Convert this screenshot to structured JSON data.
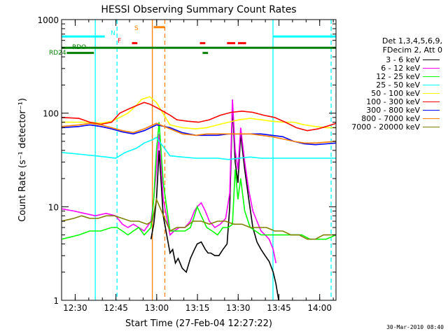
{
  "chart_data": {
    "type": "line",
    "title": "HESSI Observing Summary Count Rates",
    "xlabel": "Start Time (27-Feb-04 12:27:22)",
    "ylabel": "Count Rate (s⁻¹ detector⁻¹)",
    "yscale": "log",
    "xlim": [
      -2.4,
      98.6
    ],
    "ylim": [
      1,
      1000
    ],
    "xticks": [
      {
        "v": 2.6,
        "label": "12:30"
      },
      {
        "v": 17.6,
        "label": "12:45"
      },
      {
        "v": 32.6,
        "label": "13:00"
      },
      {
        "v": 47.6,
        "label": "13:15"
      },
      {
        "v": 62.6,
        "label": "13:30"
      },
      {
        "v": 77.6,
        "label": "13:45"
      },
      {
        "v": 92.6,
        "label": "14:00"
      }
    ],
    "yticks": [
      {
        "v": 1,
        "label": "1"
      },
      {
        "v": 10,
        "label": "10"
      },
      {
        "v": 100,
        "label": "100"
      },
      {
        "v": 1000,
        "label": "1000"
      }
    ],
    "legend_header": [
      "Det 1,3,4,5,6,9,",
      "FDecim 2, Att 0"
    ],
    "legend_position": "right",
    "series": [
      {
        "name": "3 - 6 keV",
        "color": "#000000",
        "x": [
          30.5,
          31.5,
          32.5,
          33.5,
          35,
          37.5,
          38.5,
          39.5,
          40.5,
          42,
          43.5,
          45,
          46.5,
          47.5,
          49,
          50.5,
          51.5,
          52.5,
          54,
          55.5,
          57,
          58.5,
          59.5,
          60.5,
          61.5,
          62.5,
          63.5,
          65,
          66.5,
          68,
          69.5,
          71,
          72.5,
          74,
          75.5,
          76.5,
          77.5
        ],
        "y": [
          4.5,
          6.5,
          12,
          40,
          8,
          3.2,
          3.5,
          2.5,
          2.8,
          2.2,
          2,
          2.8,
          3.5,
          4,
          4.2,
          3.5,
          3.2,
          3.2,
          3,
          3,
          3.5,
          4,
          10,
          120,
          30,
          18,
          60,
          25,
          12,
          6,
          4.2,
          3.5,
          3,
          2.6,
          2,
          1.5,
          1
        ]
      },
      {
        "name": "6 - 12 keV",
        "color": "#ff00ff",
        "x": [
          -2.4,
          2,
          6,
          10,
          14,
          17.5,
          20,
          22,
          24,
          26,
          28,
          30.5,
          31.5,
          32.5,
          33.5,
          35,
          37.5,
          39,
          41,
          43,
          45,
          46.5,
          47.5,
          49,
          50.5,
          52,
          54,
          56,
          58,
          59.5,
          60.5,
          61.5,
          62.5,
          63.5,
          65,
          66.5,
          68,
          69.5,
          71,
          72.5,
          74,
          75.5,
          76.5
        ],
        "y": [
          9.5,
          9,
          8.5,
          8,
          8.5,
          8,
          6.5,
          6,
          6.5,
          6,
          5.5,
          7,
          12,
          25,
          60,
          12,
          5,
          5.5,
          6,
          6,
          7,
          9,
          10,
          11,
          9,
          7,
          6,
          6.5,
          7.5,
          14,
          140,
          40,
          25,
          70,
          30,
          15,
          9,
          7,
          5.5,
          5,
          4.5,
          3.5,
          2.5
        ]
      },
      {
        "name": "12 - 25 keV",
        "color": "#00ff00",
        "x": [
          -2.4,
          4,
          8,
          12,
          16,
          18,
          20,
          22,
          24,
          26,
          28,
          30.5,
          31.5,
          32.5,
          33.5,
          35,
          37.5,
          40,
          43,
          45,
          46.5,
          47.5,
          49,
          51,
          53,
          55,
          57,
          59,
          60.5,
          61.5,
          62.5,
          63.5,
          65,
          67,
          69,
          71,
          73,
          75,
          77.5,
          80,
          83,
          86,
          89,
          92,
          95,
          98.6
        ],
        "y": [
          4.5,
          5,
          5.5,
          5.5,
          6,
          6,
          5.5,
          5,
          5.5,
          6,
          5,
          6,
          12,
          40,
          80,
          18,
          5.5,
          5.5,
          5.5,
          6,
          8,
          10,
          8,
          6,
          5.5,
          5,
          6,
          6,
          6.5,
          25,
          12,
          20,
          9,
          6,
          5.5,
          5,
          5,
          5,
          5,
          5,
          5,
          5,
          4.5,
          4.5,
          4.5,
          5
        ]
      },
      {
        "name": "25 - 50 keV",
        "color": "#00ffff",
        "x": [
          -2.4,
          2,
          6,
          10,
          14,
          17.5,
          21,
          25,
          28,
          31,
          32.5,
          37.5,
          42,
          47,
          51,
          55,
          59,
          63,
          67,
          71,
          75,
          79,
          83,
          87,
          91,
          95,
          98.6
        ],
        "y": [
          38,
          37,
          36,
          35,
          34,
          33,
          38,
          42,
          48,
          52,
          55,
          35,
          34,
          33,
          33,
          33,
          32,
          33,
          34,
          33,
          33,
          33,
          33,
          33,
          33,
          33,
          33
        ]
      },
      {
        "name": "50 - 100 keV",
        "color": "#ffff00",
        "x": [
          -2.4,
          4,
          8,
          12,
          16,
          19,
          22,
          25,
          27,
          30,
          32.5,
          37.5,
          42,
          47,
          51,
          55,
          59,
          63,
          67,
          71,
          75,
          79,
          83,
          87,
          91,
          95,
          98.6
        ],
        "y": [
          80,
          80,
          80,
          78,
          82,
          90,
          100,
          120,
          140,
          150,
          130,
          75,
          70,
          68,
          70,
          75,
          80,
          85,
          88,
          85,
          82,
          80,
          80,
          75,
          72,
          70,
          70
        ]
      },
      {
        "name": "100 - 300 keV",
        "color": "#ff0000",
        "x": [
          -2.4,
          4,
          8,
          12,
          16,
          19,
          22,
          25,
          28,
          30,
          32.5,
          37.5,
          40,
          44,
          48,
          52,
          56,
          60,
          64,
          68,
          72,
          76,
          80,
          84,
          88,
          92,
          95,
          98.6
        ],
        "y": [
          90,
          88,
          80,
          76,
          80,
          100,
          110,
          120,
          130,
          125,
          115,
          95,
          85,
          82,
          80,
          85,
          95,
          102,
          105,
          102,
          95,
          90,
          80,
          70,
          65,
          68,
          72,
          78
        ]
      },
      {
        "name": "300 - 800 keV",
        "color": "#0000ff",
        "x": [
          -2.4,
          4,
          8,
          12,
          16,
          20,
          24,
          28,
          32.5,
          37.5,
          42,
          47,
          51,
          55,
          59,
          63,
          67,
          71,
          75,
          79,
          83,
          87,
          91,
          95,
          98.6
        ],
        "y": [
          70,
          72,
          75,
          72,
          68,
          63,
          60,
          65,
          75,
          70,
          62,
          58,
          58,
          58,
          60,
          60,
          60,
          60,
          58,
          56,
          50,
          47,
          46,
          47,
          48
        ]
      },
      {
        "name": "800 - 7000 keV",
        "color": "#ff8000",
        "x": [
          -2.4,
          4,
          8,
          12,
          16,
          20,
          24,
          28,
          32.5,
          37.5,
          42,
          47,
          51,
          55,
          59,
          63,
          67,
          71,
          75,
          79,
          83,
          87,
          91,
          95,
          98.6
        ],
        "y": [
          72,
          75,
          78,
          75,
          70,
          65,
          62,
          68,
          78,
          68,
          60,
          58,
          60,
          60,
          60,
          60,
          60,
          58,
          56,
          53,
          50,
          48,
          48,
          49,
          50
        ]
      },
      {
        "name": "7000 - 20000 keV",
        "color": "#808000",
        "x": [
          -2.4,
          2,
          5,
          8,
          11,
          14,
          17,
          20,
          23,
          26,
          29,
          31,
          32.5,
          37.5,
          40,
          43,
          46,
          49,
          52,
          55,
          58,
          61,
          64,
          67,
          70,
          73,
          76,
          79,
          82,
          85,
          88,
          91,
          94,
          97,
          98.6
        ],
        "y": [
          7,
          7.5,
          8,
          7.5,
          7.5,
          8,
          8,
          7.5,
          7,
          7,
          6.5,
          7,
          12,
          5.5,
          6,
          6,
          7,
          7,
          6.5,
          7,
          7,
          6.5,
          6.5,
          6,
          6,
          6,
          5.5,
          5.5,
          5,
          5,
          4.5,
          4.5,
          5,
          5,
          5
        ]
      }
    ],
    "flag_labels": [
      {
        "text": "N",
        "color": "#00ffff"
      },
      {
        "text": "F",
        "color": "#ff0000"
      },
      {
        "text": "S",
        "color": "#ff8000"
      },
      {
        "text": "RDO",
        "color": "#008000"
      },
      {
        "text": "RD24",
        "color": "#008000"
      }
    ],
    "flag_bars": [
      {
        "label": "N",
        "color": "#00ffff",
        "level": 660,
        "segments": [
          [
            -2.4,
            13.5
          ],
          [
            75.5,
            98.6
          ]
        ]
      },
      {
        "label": "F",
        "color": "#ff0000",
        "level": 560,
        "segments": [
          [
            23.5,
            25.5
          ],
          [
            48.5,
            50.5
          ],
          [
            58.5,
            61.5
          ],
          [
            62.5,
            65.5
          ]
        ]
      },
      {
        "label": "S",
        "color": "#ff8000",
        "level": 830,
        "segments": [
          [
            31.5,
            35.5
          ]
        ]
      },
      {
        "label": "RDO",
        "color": "#008000",
        "level": 500,
        "segments": [
          [
            -2.4,
            98.6
          ]
        ]
      },
      {
        "label": "RD24",
        "color": "#008000",
        "level": 440,
        "segments": [
          [
            -0.5,
            9.5
          ],
          [
            49.5,
            51.5
          ]
        ]
      }
    ],
    "vertical_markers": [
      {
        "x": 10.0,
        "color": "#00ffff",
        "style": "solid"
      },
      {
        "x": 18.0,
        "color": "#00ffff",
        "style": "dashed"
      },
      {
        "x": 31.0,
        "color": "#ff8000",
        "style": "solid"
      },
      {
        "x": 35.6,
        "color": "#ff8000",
        "style": "dashed"
      },
      {
        "x": 75.4,
        "color": "#00ffff",
        "style": "solid"
      },
      {
        "x": 96.8,
        "color": "#00ffff",
        "style": "dashed"
      }
    ],
    "grid": false
  },
  "timestamp": "30-Mar-2010 08:40"
}
